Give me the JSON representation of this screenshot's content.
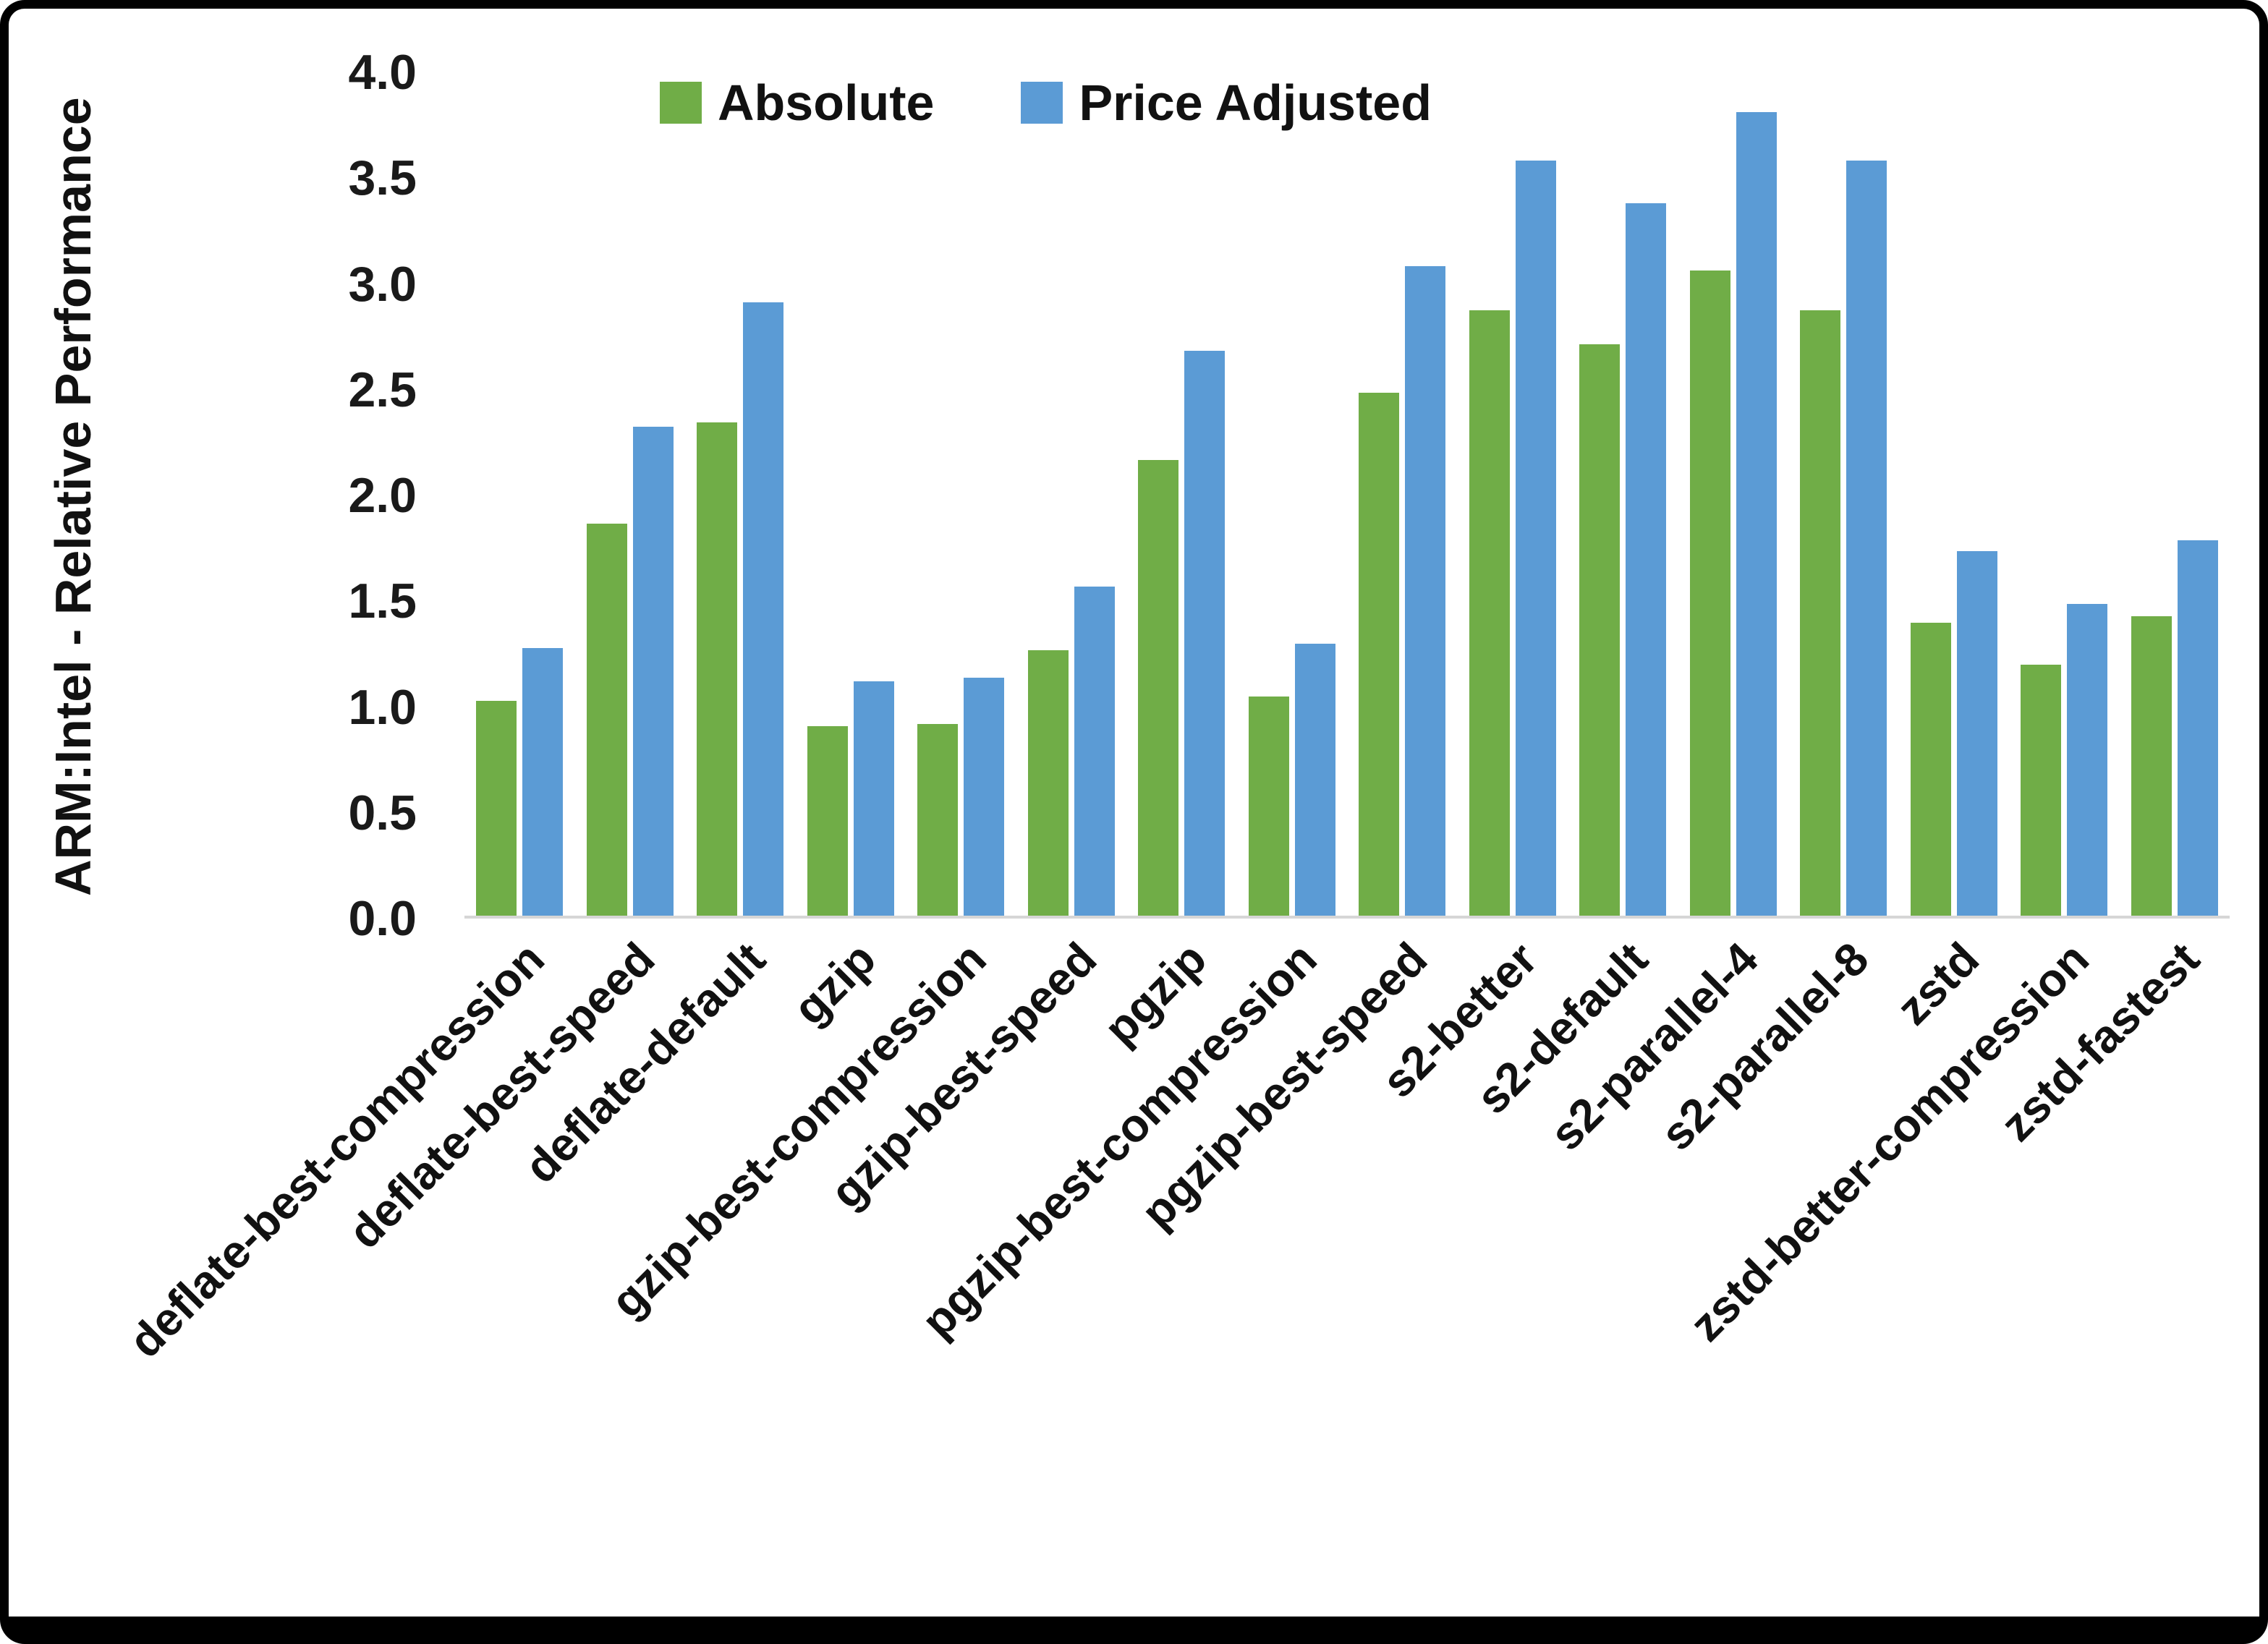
{
  "chart_data": {
    "type": "bar",
    "title": "",
    "xlabel": "",
    "ylabel": "ARM:Intel - Relative Performance",
    "ylim": [
      0.0,
      4.0
    ],
    "ytick_step": 0.5,
    "yticks": [
      "4.0",
      "3.5",
      "3.0",
      "2.5",
      "2.0",
      "1.5",
      "1.0",
      "0.5",
      "0.0"
    ],
    "grid": "off",
    "legend_position": "top",
    "categories": [
      "deflate-best-compression",
      "deflate-best-speed",
      "deflate-default",
      "gzip",
      "gzip-best-compression",
      "gzip-best-speed",
      "pgzip",
      "pgzip-best-compression",
      "pgzip-best-speed",
      "s2-better",
      "s2-default",
      "s2-parallel-4",
      "s2-parallel-8",
      "zstd",
      "zstd-better-compression",
      "zstd-fastest"
    ],
    "series": [
      {
        "name": "Absolute",
        "color": "#70AD47",
        "values": [
          1.02,
          1.86,
          2.34,
          0.9,
          0.91,
          1.26,
          2.16,
          1.04,
          2.48,
          2.87,
          2.71,
          3.06,
          2.87,
          1.39,
          1.19,
          1.42
        ]
      },
      {
        "name": "Price Adjusted",
        "color": "#5B9BD5",
        "values": [
          1.27,
          2.32,
          2.91,
          1.11,
          1.13,
          1.56,
          2.68,
          1.29,
          3.08,
          3.58,
          3.38,
          3.81,
          3.58,
          1.73,
          1.48,
          1.78
        ]
      }
    ]
  }
}
